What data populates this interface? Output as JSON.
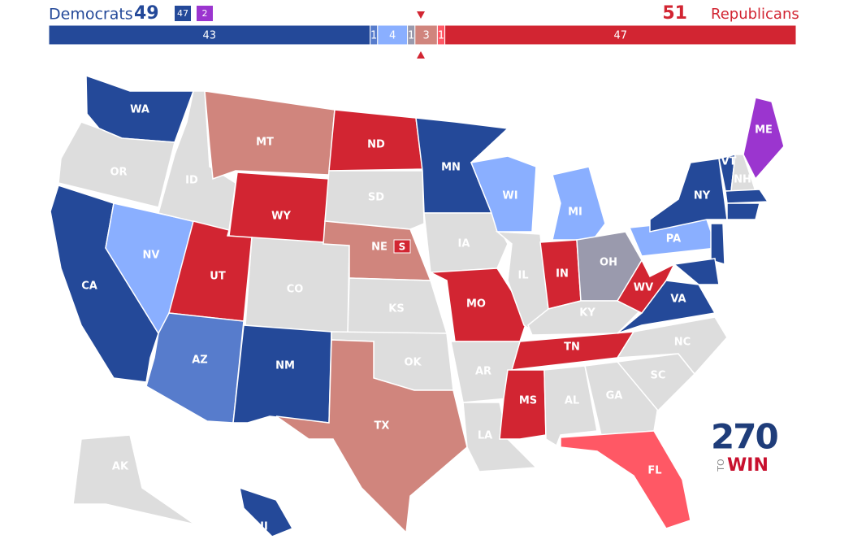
{
  "header": {
    "dem_label": "Democrats",
    "dem_total": "49",
    "dem_boxes": [
      {
        "text": "47",
        "color": "#244999"
      },
      {
        "text": "2",
        "color": "#9b35cf"
      }
    ],
    "rep_total": "51",
    "rep_label": "Republicans",
    "dem_color": "#244999",
    "rep_color": "#d22532"
  },
  "bar": {
    "segments": [
      {
        "value": 43,
        "color": "#244999"
      },
      {
        "value": 1,
        "color": "#577ccc"
      },
      {
        "value": 4,
        "color": "#8aafff"
      },
      {
        "value": 1,
        "color": "#9a9aad"
      },
      {
        "value": 3,
        "color": "#d0857d"
      },
      {
        "value": 1,
        "color": "#ff5865"
      },
      {
        "value": 47,
        "color": "#d22532"
      }
    ]
  },
  "states": [
    {
      "label": "WA",
      "color": "#244999"
    },
    {
      "label": "OR",
      "color": "#dddddd"
    },
    {
      "label": "CA",
      "color": "#244999"
    },
    {
      "label": "NV",
      "color": "#8aafff"
    },
    {
      "label": "ID",
      "color": "#dddddd"
    },
    {
      "label": "MT",
      "color": "#d0857d"
    },
    {
      "label": "WY",
      "color": "#d22532"
    },
    {
      "label": "UT",
      "color": "#d22532"
    },
    {
      "label": "AZ",
      "color": "#577ccc"
    },
    {
      "label": "CO",
      "color": "#dddddd"
    },
    {
      "label": "NM",
      "color": "#244999"
    },
    {
      "label": "ND",
      "color": "#d22532"
    },
    {
      "label": "SD",
      "color": "#dddddd"
    },
    {
      "label": "NE",
      "color": "#d0857d"
    },
    {
      "label": "KS",
      "color": "#dddddd"
    },
    {
      "label": "OK",
      "color": "#dddddd"
    },
    {
      "label": "TX",
      "color": "#d0857d"
    },
    {
      "label": "MN",
      "color": "#244999"
    },
    {
      "label": "IA",
      "color": "#dddddd"
    },
    {
      "label": "MO",
      "color": "#d22532"
    },
    {
      "label": "AR",
      "color": "#dddddd"
    },
    {
      "label": "LA",
      "color": "#dddddd"
    },
    {
      "label": "WI",
      "color": "#8aafff"
    },
    {
      "label": "IL",
      "color": "#dddddd"
    },
    {
      "label": "MI",
      "color": "#8aafff"
    },
    {
      "label": "IN",
      "color": "#d22532"
    },
    {
      "label": "OH",
      "color": "#9a9aad"
    },
    {
      "label": "KY",
      "color": "#dddddd"
    },
    {
      "label": "TN",
      "color": "#d22532"
    },
    {
      "label": "MS",
      "color": "#d22532"
    },
    {
      "label": "AL",
      "color": "#dddddd"
    },
    {
      "label": "GA",
      "color": "#dddddd"
    },
    {
      "label": "FL",
      "color": "#ff5865"
    },
    {
      "label": "SC",
      "color": "#dddddd"
    },
    {
      "label": "NC",
      "color": "#dddddd"
    },
    {
      "label": "VA",
      "color": "#244999"
    },
    {
      "label": "WV",
      "color": "#d22532"
    },
    {
      "label": "PA",
      "color": "#8aafff"
    },
    {
      "label": "NY",
      "color": "#244999"
    },
    {
      "label": "VT",
      "color": "#244999"
    },
    {
      "label": "NH",
      "color": "#dddddd"
    },
    {
      "label": "ME",
      "color": "#9b35cf"
    },
    {
      "label": null,
      "color": "#244999"
    },
    {
      "label": null,
      "color": "#244999"
    },
    {
      "label": null,
      "color": "#244999"
    },
    {
      "label": null,
      "color": "#244999"
    },
    {
      "label": "AK",
      "color": "#dddddd"
    },
    {
      "label": "HI",
      "color": "#244999"
    }
  ],
  "special_marker": "S",
  "logo": {
    "number": "270",
    "to": "TO",
    "win": "WIN"
  }
}
